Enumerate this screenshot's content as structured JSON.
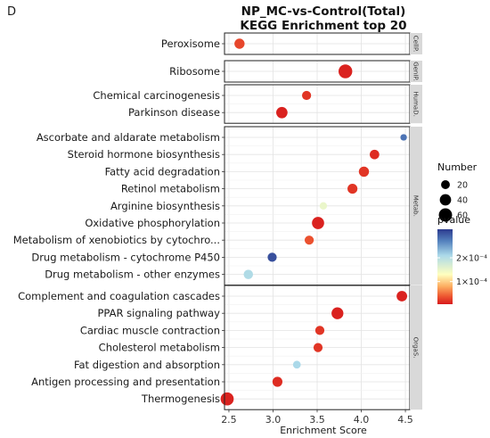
{
  "panel_label": "D",
  "chart_data": {
    "type": "scatter",
    "title": "NP_MC-vs-Control(Total)",
    "subtitle": "KEGG Enrichment top 20",
    "xlabel": "Enrichment Score",
    "ylabel": "",
    "xlim": [
      2.45,
      4.55
    ],
    "x_ticks": [
      "2.5",
      "3.0",
      "3.5",
      "4.0",
      "4.5"
    ],
    "grid": true,
    "facets": [
      {
        "name": "CellP.",
        "terms": [
          {
            "label": "Peroxisome",
            "x": 2.62,
            "count": 30,
            "pvalue": 3e-05
          }
        ]
      },
      {
        "name": "GenIP.",
        "terms": [
          {
            "label": "Ribosome",
            "x": 3.82,
            "count": 65,
            "pvalue": 1e-05
          }
        ]
      },
      {
        "name": "HumaD.",
        "terms": [
          {
            "label": "Chemical carcinogenesis",
            "x": 3.38,
            "count": 22,
            "pvalue": 2e-05
          },
          {
            "label": "Parkinson disease",
            "x": 3.1,
            "count": 40,
            "pvalue": 1e-05
          }
        ]
      },
      {
        "name": "Metab.",
        "terms": [
          {
            "label": "Ascorbate and aldarate metabolism",
            "x": 4.48,
            "count": 8,
            "pvalue": 0.00028
          },
          {
            "label": "Steroid hormone biosynthesis",
            "x": 4.15,
            "count": 25,
            "pvalue": 1.5e-05
          },
          {
            "label": "Fatty acid degradation",
            "x": 4.03,
            "count": 30,
            "pvalue": 2e-05
          },
          {
            "label": "Retinol metabolism",
            "x": 3.9,
            "count": 28,
            "pvalue": 2e-05
          },
          {
            "label": "Arginine biosynthesis",
            "x": 3.57,
            "count": 12,
            "pvalue": 0.00015
          },
          {
            "label": "Oxidative phosphorylation",
            "x": 3.51,
            "count": 48,
            "pvalue": 1e-05
          },
          {
            "label": "Metabolism of xenobiotics by cytochro...",
            "x": 3.41,
            "count": 22,
            "pvalue": 3.5e-05
          },
          {
            "label": "Drug metabolism - cytochrome P450",
            "x": 2.99,
            "count": 22,
            "pvalue": 0.000305
          },
          {
            "label": "Drug metabolism - other enzymes",
            "x": 2.72,
            "count": 24,
            "pvalue": 0.000205
          }
        ]
      },
      {
        "name": "OrgaS.",
        "terms": [
          {
            "label": "Complement and coagulation cascades",
            "x": 4.46,
            "count": 33,
            "pvalue": 1e-05
          },
          {
            "label": "PPAR signaling pathway",
            "x": 3.73,
            "count": 45,
            "pvalue": 1e-05
          },
          {
            "label": "Cardiac muscle contraction",
            "x": 3.53,
            "count": 22,
            "pvalue": 2e-05
          },
          {
            "label": "Cholesterol metabolism",
            "x": 3.51,
            "count": 22,
            "pvalue": 2e-05
          },
          {
            "label": "Fat digestion and absorption",
            "x": 3.27,
            "count": 14,
            "pvalue": 0.00021
          },
          {
            "label": "Antigen processing and presentation",
            "x": 3.05,
            "count": 28,
            "pvalue": 1.5e-05
          },
          {
            "label": "Thermogenesis",
            "x": 2.48,
            "count": 58,
            "pvalue": 1e-05
          }
        ]
      }
    ],
    "size_legend": {
      "title": "Number",
      "entries": [
        {
          "label": "20",
          "value": 20
        },
        {
          "label": "40",
          "value": 40
        },
        {
          "label": "60",
          "value": 60
        }
      ]
    },
    "color_legend": {
      "title": "pvalue",
      "tick_labels": [
        "2×10⁻⁴",
        "1×10⁻⁴"
      ],
      "tick_values": [
        0.0002,
        0.0001
      ],
      "range": [
        5e-06,
        0.00032
      ],
      "colors": {
        "low": "#d7191c",
        "mid_low": "#fdae61",
        "mid": "#ffffbf",
        "mid_high": "#abd9e9",
        "high": "#2c3b8f"
      }
    }
  }
}
